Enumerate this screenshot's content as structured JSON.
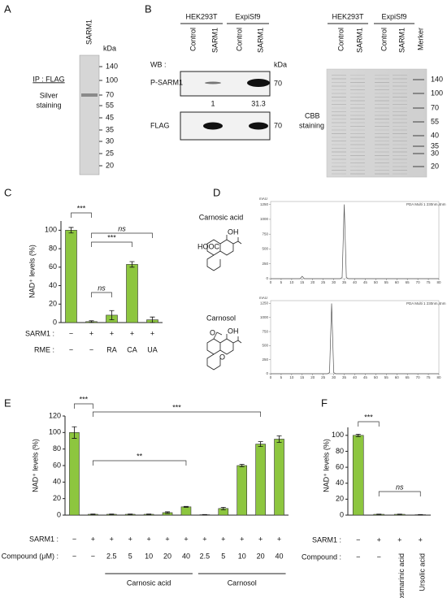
{
  "panels": {
    "A": {
      "letter": "A",
      "ip": "IP : FLAG",
      "stain_lines": [
        "Silver",
        "staining"
      ],
      "lane": "SARM1",
      "unit": "kDa",
      "markers": [
        140,
        100,
        70,
        55,
        45,
        35,
        30,
        25,
        20
      ]
    },
    "B": {
      "letter": "B",
      "groups": [
        "HEK293T",
        "ExpiSf9"
      ],
      "lanes": [
        "Control",
        "SARM1",
        "Control",
        "SARM1"
      ],
      "wb": "WB :",
      "unit": "kDa",
      "blots": [
        "P-SARM1",
        "FLAG"
      ],
      "size": "70",
      "quant": [
        "1",
        "31.3"
      ],
      "gel_groups": [
        "HEK293T",
        "ExpiSf9"
      ],
      "gel_lanes": [
        "Control",
        "SARM1",
        "Control",
        "SARM1",
        "Merker"
      ],
      "stain_lines": [
        "CBB",
        "staining"
      ],
      "gel_markers": [
        140,
        100,
        70,
        55,
        40,
        35,
        30,
        20
      ]
    },
    "D": {
      "letter": "D",
      "compounds": [
        "Carnosic acid",
        "Carnosol"
      ],
      "atoms": [
        [
          "OH",
          "HOOC"
        ],
        [
          "OH",
          "O",
          "O"
        ]
      ]
    }
  },
  "chart_data": [
    {
      "type": "bar",
      "letter": "C",
      "ylabel": "NAD⁺ levels (%)",
      "values": [
        100,
        1,
        8,
        63,
        3
      ],
      "errors": [
        3,
        1,
        5,
        3,
        3
      ],
      "color": "#8dc63f",
      "ylim": [
        0,
        110
      ],
      "yticks": [
        0,
        20,
        40,
        60,
        80,
        100
      ],
      "rows": [
        {
          "label": "SARM1 :",
          "values": [
            "−",
            "+",
            "+",
            "+",
            "+"
          ]
        },
        {
          "label": "RME :",
          "values": [
            "−",
            "−",
            "RA",
            "CA",
            "UA"
          ]
        }
      ],
      "annotations": [
        "***",
        "ns",
        "***",
        "ns"
      ]
    },
    {
      "type": "bar",
      "letter": "E",
      "ylabel": "NAD⁺ levels (%)",
      "values": [
        100,
        1,
        1,
        1,
        1,
        3,
        10,
        0.5,
        8,
        60,
        86,
        92
      ],
      "errors": [
        7,
        0.3,
        0.3,
        0.3,
        0.3,
        1,
        0.5,
        0.2,
        1.5,
        1.5,
        3,
        4
      ],
      "color": "#8dc63f",
      "ylim": [
        0,
        120
      ],
      "yticks": [
        0,
        20,
        40,
        60,
        80,
        100,
        120
      ],
      "rows": [
        {
          "label": "SARM1 :",
          "values": [
            "−",
            "+",
            "+",
            "+",
            "+",
            "+",
            "+",
            "+",
            "+",
            "+",
            "+",
            "+"
          ]
        },
        {
          "label": "Compound (μM) :",
          "values": [
            "−",
            "−",
            "2.5",
            "5",
            "10",
            "20",
            "40",
            "2.5",
            "5",
            "10",
            "20",
            "40"
          ]
        }
      ],
      "groups": [
        "Carnosic acid",
        "Carnosol"
      ],
      "annotations": [
        "***",
        "***",
        "**"
      ]
    },
    {
      "type": "bar",
      "letter": "F",
      "ylabel": "NAD⁺ levels (%)",
      "values": [
        100,
        1,
        1,
        0.5
      ],
      "errors": [
        1.5,
        0.3,
        0.3,
        0.2
      ],
      "color": "#8dc63f",
      "ylim": [
        0,
        110
      ],
      "yticks": [
        0,
        20,
        40,
        60,
        80,
        100
      ],
      "rows": [
        {
          "label": "SARM1 :",
          "values": [
            "−",
            "+",
            "+",
            "+"
          ]
        },
        {
          "label": "Compound :",
          "values": [
            "−",
            "−",
            "Rosmarinic acid",
            "Ursolic acid"
          ]
        }
      ],
      "annotations": [
        "***",
        "ns"
      ]
    },
    {
      "type": "line",
      "ylabel": "mAU",
      "legend": "PDA Multi 1 230nm,4nm",
      "x": [
        0,
        14,
        15,
        16,
        33,
        34,
        35,
        36,
        37,
        80
      ],
      "values": [
        0,
        0,
        40,
        0,
        0,
        20,
        1250,
        20,
        0,
        0
      ],
      "color": "#555555",
      "xlim": [
        0,
        80
      ],
      "ylim": [
        0,
        1300
      ],
      "xticks": [
        0,
        5,
        10,
        15,
        20,
        25,
        30,
        35,
        40,
        45,
        50,
        55,
        60,
        65,
        70,
        75,
        80
      ],
      "yticks": [
        0,
        250,
        500,
        750,
        1000,
        1250
      ]
    },
    {
      "type": "line",
      "ylabel": "mAU",
      "legend": "PDA Multi 1 230nm,4nm",
      "x": [
        0,
        27,
        28,
        29,
        30,
        31,
        80
      ],
      "values": [
        0,
        0,
        20,
        1250,
        20,
        0,
        0
      ],
      "color": "#555555",
      "xlim": [
        0,
        80
      ],
      "ylim": [
        0,
        1300
      ],
      "xticks": [
        0,
        5,
        10,
        15,
        20,
        25,
        30,
        35,
        40,
        45,
        50,
        55,
        60,
        65,
        70,
        75,
        80
      ],
      "yticks": [
        0,
        250,
        500,
        750,
        1000,
        1250
      ]
    }
  ]
}
